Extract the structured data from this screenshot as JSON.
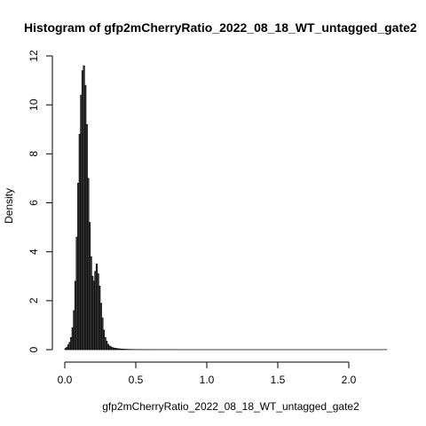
{
  "chart_data": {
    "type": "bar",
    "title": "Histogram of gfp2mCherryRatio_2022_08_18_WT_untagged_gate2",
    "xlabel": "gfp2mCherryRatio_2022_08_18_WT_untagged_gate2",
    "ylabel": "Density",
    "xlim": [
      0,
      2.27
    ],
    "ylim": [
      0,
      12
    ],
    "xticks": [
      "0.0",
      "0.5",
      "1.0",
      "1.5",
      "2.0"
    ],
    "yticks": [
      "0",
      "2",
      "4",
      "6",
      "8",
      "10",
      "12"
    ],
    "bin_width": 0.01,
    "bin_starts": [
      0.0,
      0.01,
      0.02,
      0.03,
      0.04,
      0.05,
      0.06,
      0.07,
      0.08,
      0.09,
      0.1,
      0.11,
      0.12,
      0.13,
      0.14,
      0.15,
      0.16,
      0.17,
      0.18,
      0.19,
      0.2,
      0.21,
      0.22,
      0.23,
      0.24,
      0.25,
      0.26,
      0.27,
      0.28,
      0.29,
      0.3,
      0.31,
      0.32,
      0.33,
      0.34,
      0.35,
      0.36,
      0.37,
      0.38,
      0.39,
      0.4,
      0.41,
      0.42,
      0.43,
      0.44,
      0.45,
      0.46,
      0.47,
      0.48,
      0.49,
      0.5,
      0.51,
      0.52,
      0.53,
      0.54,
      0.55,
      0.56,
      0.57,
      0.58,
      0.59,
      0.6,
      0.61,
      0.62,
      0.63,
      0.64,
      0.65,
      0.66,
      0.67,
      0.68,
      0.69,
      0.7,
      0.71,
      0.72,
      0.73,
      0.74,
      0.75,
      0.76,
      0.77,
      0.78,
      0.79,
      0.8,
      0.81,
      0.82,
      0.83,
      0.84,
      0.85,
      0.86,
      0.87,
      0.88,
      0.89,
      0.9,
      0.91,
      0.92,
      0.93,
      0.94,
      0.95,
      0.96,
      0.97,
      0.98,
      0.99,
      1.0,
      1.01,
      1.02,
      1.03,
      1.04,
      1.05,
      1.06,
      1.07,
      1.08,
      1.09,
      1.1,
      1.11,
      1.12,
      1.13,
      1.14,
      1.15,
      1.16,
      1.17,
      1.18,
      1.19,
      1.2,
      1.21,
      1.22,
      1.23,
      1.24,
      1.25,
      1.26,
      1.27,
      1.28,
      1.29,
      1.3,
      1.31,
      1.32,
      1.33,
      1.34,
      1.35,
      1.36,
      1.37,
      1.38,
      1.39,
      1.4,
      1.41,
      1.42,
      1.43,
      1.44,
      1.45,
      1.46,
      1.47,
      1.48,
      1.49,
      1.5,
      1.51,
      1.52,
      1.53,
      1.54,
      1.55,
      1.56,
      1.57,
      1.58,
      1.59,
      1.6,
      1.61,
      1.62,
      1.63,
      1.64,
      1.65,
      1.66,
      1.67,
      1.68,
      1.69,
      1.7,
      1.71,
      1.72,
      1.73,
      1.74,
      1.75,
      1.76,
      1.77,
      1.78,
      1.79,
      1.8,
      1.81,
      1.82,
      1.83,
      1.84,
      1.85,
      1.86,
      1.87,
      1.88,
      1.89,
      1.9,
      1.91,
      1.92,
      1.93,
      1.94,
      1.95,
      1.96,
      1.97,
      1.98,
      1.99,
      2.0,
      2.01,
      2.02,
      2.03,
      2.04,
      2.05,
      2.06,
      2.07,
      2.08,
      2.09,
      2.1,
      2.11,
      2.12,
      2.13,
      2.14,
      2.15,
      2.16,
      2.17,
      2.18,
      2.19,
      2.2,
      2.21,
      2.22,
      2.23,
      2.24,
      2.25,
      2.26
    ],
    "values": [
      0.05,
      0.1,
      0.2,
      0.3,
      0.5,
      0.9,
      1.6,
      2.8,
      4.6,
      6.8,
      8.8,
      10.4,
      11.4,
      11.6,
      10.8,
      9.2,
      7.0,
      5.2,
      3.8,
      3.0,
      2.8,
      3.2,
      3.5,
      3.1,
      2.6,
      1.9,
      1.3,
      0.8,
      0.5,
      0.35,
      0.22,
      0.15,
      0.12,
      0.09,
      0.07,
      0.06,
      0.05,
      0.04,
      0.035,
      0.03,
      0.025,
      0.02,
      0.018,
      0.015,
      0.013,
      0.012,
      0.01,
      0.01,
      0.009,
      0.008,
      0.008,
      0.007,
      0.007,
      0.006,
      0.006,
      0.006,
      0.005,
      0.005,
      0.005,
      0.005,
      0.004,
      0.004,
      0.004,
      0.004,
      0.004,
      0.004,
      0.003,
      0.003,
      0.003,
      0.003,
      0.003,
      0.003,
      0.003,
      0.003,
      0.003,
      0.003,
      0.002,
      0.002,
      0.002,
      0.002,
      0.002,
      0.002,
      0.002,
      0.002,
      0.002,
      0.002,
      0.002,
      0.002,
      0.002,
      0.002,
      0.002,
      0.002,
      0.002,
      0.002,
      0.002,
      0.002,
      0.002,
      0.002,
      0.002,
      0.002,
      0.002,
      0.002,
      0.002,
      0.002,
      0.002,
      0.002,
      0.002,
      0.002,
      0.002,
      0.002,
      0.002,
      0.002,
      0.002,
      0.002,
      0.002,
      0.002,
      0.002,
      0.002,
      0.002,
      0.002,
      0.002,
      0.002,
      0.002,
      0.002,
      0.002,
      0.002,
      0.002,
      0.002,
      0.002,
      0.002,
      0.002,
      0.002,
      0.002,
      0.002,
      0.002,
      0.002,
      0.002,
      0.002,
      0.002,
      0.002,
      0.002,
      0.002,
      0.002,
      0.002,
      0.002,
      0.002,
      0.002,
      0.002,
      0.002,
      0.002,
      0.002,
      0.002,
      0.002,
      0.002,
      0.002,
      0.002,
      0.002,
      0.002,
      0.002,
      0.002,
      0.002,
      0.002,
      0.002,
      0.002,
      0.002,
      0.002,
      0.002,
      0.002,
      0.002,
      0.002,
      0.002,
      0.002,
      0.002,
      0.002,
      0.002,
      0.002,
      0.002,
      0.002,
      0.002,
      0.002,
      0.002,
      0.002,
      0.002,
      0.002,
      0.002,
      0.002,
      0.002,
      0.002,
      0.002,
      0.002,
      0.002,
      0.002,
      0.002,
      0.002,
      0.002,
      0.002,
      0.002,
      0.002,
      0.002,
      0.002,
      0.002,
      0.002,
      0.002,
      0.002,
      0.002,
      0.002,
      0.002,
      0.002,
      0.002,
      0.002,
      0.002,
      0.002,
      0.002,
      0.002,
      0.002,
      0.002,
      0.002,
      0.002,
      0.002,
      0.002,
      0.002,
      0.002,
      0.002,
      0.002,
      0.002,
      0.002,
      0.002,
      0.002,
      0.002,
      0.002,
      0.002,
      0.002
    ],
    "grid": false,
    "bar_color": "#3c3c3c",
    "edge_color": "#000000"
  }
}
